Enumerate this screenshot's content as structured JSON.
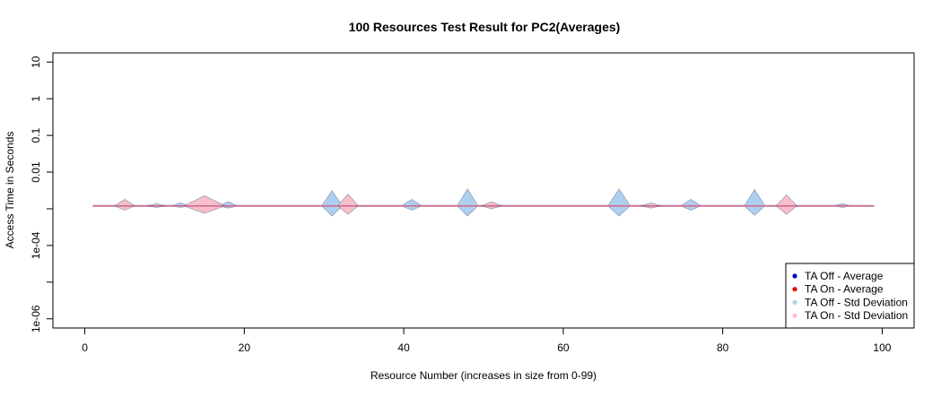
{
  "chart_data": {
    "type": "line",
    "title": "100 Resources Test Result for PC2(Averages)",
    "xlabel": "Resource Number (increases in size from 0-99)",
    "ylabel": "Access Time in Seconds",
    "xlim": [
      -4,
      104
    ],
    "ylim_log10": [
      -6.25,
      1.25
    ],
    "y_scale": "log",
    "x_ticks": [
      0,
      20,
      40,
      60,
      80,
      100
    ],
    "y_ticks": [
      {
        "value": 10,
        "label": "10"
      },
      {
        "value": 1,
        "label": "1"
      },
      {
        "value": 0.1,
        "label": "0.1"
      },
      {
        "value": 0.01,
        "label": "0.01"
      },
      {
        "value": 0.001,
        "label": ""
      },
      {
        "value": 0.0001,
        "label": "1e-04"
      },
      {
        "value": 1e-05,
        "label": ""
      },
      {
        "value": 1e-06,
        "label": "1e-06"
      }
    ],
    "series": [
      {
        "name": "TA Off - Std Deviation",
        "kind": "band",
        "color": "#a9cdef",
        "baseline": 0.0012,
        "spikes": [
          {
            "x": 12,
            "w": 1.2,
            "up": 1.2,
            "down": 1.1
          },
          {
            "x": 18,
            "w": 1.2,
            "up": 1.3,
            "down": 1.15
          },
          {
            "x": 31,
            "w": 1.3,
            "up": 2.6,
            "down": 1.9
          },
          {
            "x": 41,
            "w": 1.3,
            "up": 1.5,
            "down": 1.3
          },
          {
            "x": 48,
            "w": 1.3,
            "up": 2.9,
            "down": 1.9
          },
          {
            "x": 67,
            "w": 1.4,
            "up": 2.9,
            "down": 1.9
          },
          {
            "x": 76,
            "w": 1.3,
            "up": 1.5,
            "down": 1.3
          },
          {
            "x": 84,
            "w": 1.3,
            "up": 2.8,
            "down": 1.8
          },
          {
            "x": 95,
            "w": 1.2,
            "up": 1.15,
            "down": 1.1
          }
        ]
      },
      {
        "name": "TA On - Std Deviation",
        "kind": "band",
        "color": "#f8bcc6",
        "baseline": 0.0012,
        "spikes": [
          {
            "x": 5,
            "w": 1.3,
            "up": 1.5,
            "down": 1.3
          },
          {
            "x": 9,
            "w": 1.2,
            "up": 1.15,
            "down": 1.1
          },
          {
            "x": 15,
            "w": 2.6,
            "up": 1.9,
            "down": 1.6
          },
          {
            "x": 33,
            "w": 1.3,
            "up": 2.1,
            "down": 1.7
          },
          {
            "x": 51,
            "w": 1.3,
            "up": 1.3,
            "down": 1.2
          },
          {
            "x": 71,
            "w": 1.3,
            "up": 1.2,
            "down": 1.15
          },
          {
            "x": 88,
            "w": 1.3,
            "up": 2.0,
            "down": 1.7
          }
        ]
      },
      {
        "name": "TA Off - Average",
        "kind": "line",
        "color": "#0000cc",
        "x_start": 1,
        "x_end": 99,
        "value": 0.0012
      },
      {
        "name": "TA On - Average",
        "kind": "line",
        "color": "#ee0000",
        "x_start": 1,
        "x_end": 99,
        "value": 0.00118
      }
    ],
    "legend": {
      "placement": "bottom-right",
      "items": [
        {
          "label": "TA Off - Average",
          "color": "#0000cc"
        },
        {
          "label": "TA On - Average",
          "color": "#ee0000"
        },
        {
          "label": "TA Off - Std Deviation",
          "color": "#add8e6"
        },
        {
          "label": "TA On - Std Deviation",
          "color": "#ffc0cb"
        }
      ]
    },
    "grid": false
  }
}
